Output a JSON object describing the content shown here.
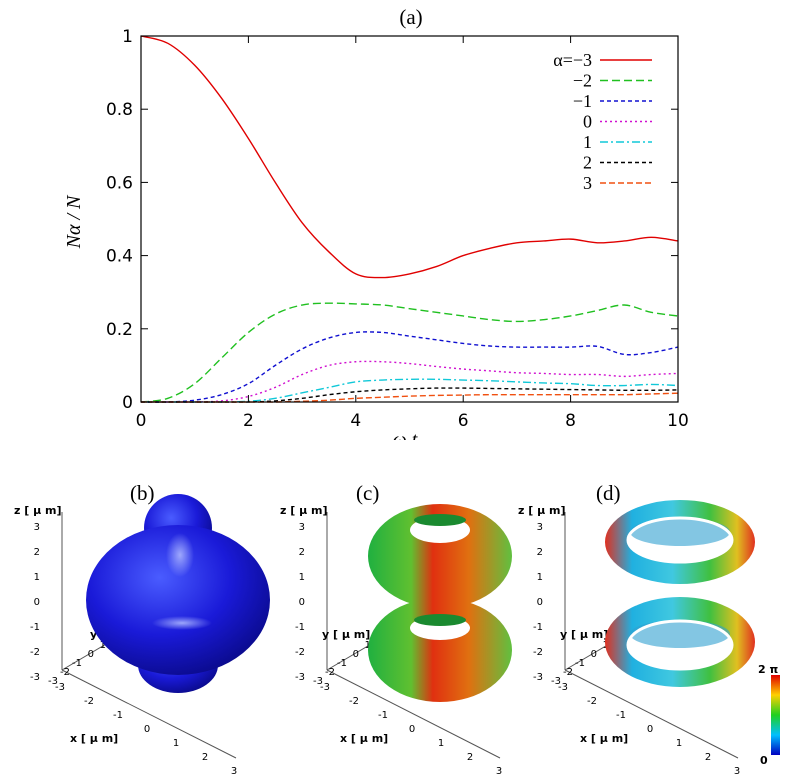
{
  "chart_data": {
    "type": "line",
    "panel_label": "(a)",
    "xlabel": "ω t",
    "ylabel": "Nα / N",
    "xlim": [
      0,
      10
    ],
    "ylim": [
      0,
      1
    ],
    "xticks": [
      "0",
      "2",
      "4",
      "6",
      "8",
      "10"
    ],
    "yticks": [
      "0",
      "0.2",
      "0.4",
      "0.6",
      "0.8",
      "1"
    ],
    "legend_position": "top-right",
    "series": [
      {
        "name": "α=−3",
        "color": "#e00000",
        "dash": "solid",
        "x": [
          0,
          0.5,
          1,
          1.5,
          2,
          2.5,
          3,
          3.5,
          4,
          4.5,
          5,
          5.5,
          6,
          6.5,
          7,
          7.5,
          8,
          8.5,
          9,
          9.5,
          10
        ],
        "y": [
          1.0,
          0.98,
          0.92,
          0.83,
          0.72,
          0.6,
          0.49,
          0.41,
          0.35,
          0.34,
          0.35,
          0.37,
          0.4,
          0.42,
          0.435,
          0.44,
          0.445,
          0.435,
          0.44,
          0.45,
          0.44
        ]
      },
      {
        "name": "−2",
        "color": "#20c020",
        "dash": "8,4",
        "x": [
          0,
          0.5,
          1,
          1.5,
          2,
          2.5,
          3,
          3.5,
          4,
          4.5,
          5,
          5.5,
          6,
          6.5,
          7,
          7.5,
          8,
          8.5,
          9,
          9.5,
          10
        ],
        "y": [
          0.0,
          0.01,
          0.05,
          0.12,
          0.19,
          0.24,
          0.265,
          0.27,
          0.268,
          0.265,
          0.255,
          0.245,
          0.235,
          0.225,
          0.22,
          0.225,
          0.235,
          0.25,
          0.265,
          0.245,
          0.235
        ]
      },
      {
        "name": "−1",
        "color": "#1010d0",
        "dash": "4,3",
        "x": [
          0,
          0.5,
          1,
          1.5,
          2,
          2.5,
          3,
          3.5,
          4,
          4.5,
          5,
          5.5,
          6,
          6.5,
          7,
          7.5,
          8,
          8.5,
          9,
          9.5,
          10
        ],
        "y": [
          0.0,
          0.0,
          0.005,
          0.02,
          0.05,
          0.1,
          0.145,
          0.175,
          0.19,
          0.19,
          0.18,
          0.17,
          0.16,
          0.153,
          0.15,
          0.15,
          0.15,
          0.152,
          0.13,
          0.135,
          0.15
        ]
      },
      {
        "name": "0",
        "color": "#d010d0",
        "dash": "2,3",
        "x": [
          0,
          0.5,
          1,
          1.5,
          2,
          2.5,
          3,
          3.5,
          4,
          4.5,
          5,
          5.5,
          6,
          6.5,
          7,
          7.5,
          8,
          8.5,
          9,
          9.5,
          10
        ],
        "y": [
          0.0,
          0.0,
          0.0,
          0.003,
          0.015,
          0.04,
          0.075,
          0.1,
          0.11,
          0.11,
          0.105,
          0.097,
          0.09,
          0.085,
          0.08,
          0.078,
          0.075,
          0.075,
          0.07,
          0.075,
          0.078
        ]
      },
      {
        "name": "1",
        "color": "#10c8d8",
        "dash": "8,3,2,3",
        "x": [
          0,
          0.5,
          1,
          1.5,
          2,
          2.5,
          3,
          3.5,
          4,
          4.5,
          5,
          5.5,
          6,
          6.5,
          7,
          7.5,
          8,
          8.5,
          9,
          9.5,
          10
        ],
        "y": [
          0.0,
          0.0,
          0.0,
          0.0,
          0.002,
          0.01,
          0.025,
          0.04,
          0.055,
          0.06,
          0.062,
          0.062,
          0.06,
          0.058,
          0.055,
          0.052,
          0.05,
          0.045,
          0.045,
          0.048,
          0.045
        ]
      },
      {
        "name": "2",
        "color": "#000000",
        "dash": "4,3",
        "x": [
          0,
          0.5,
          1,
          1.5,
          2,
          2.5,
          3,
          3.5,
          4,
          4.5,
          5,
          5.5,
          6,
          6.5,
          7,
          7.5,
          8,
          8.5,
          9,
          9.5,
          10
        ],
        "y": [
          0.0,
          0.0,
          0.0,
          0.0,
          0.0,
          0.003,
          0.01,
          0.02,
          0.028,
          0.033,
          0.036,
          0.038,
          0.038,
          0.037,
          0.036,
          0.035,
          0.034,
          0.033,
          0.032,
          0.032,
          0.033
        ]
      },
      {
        "name": "3",
        "color": "#f05010",
        "dash": "6,3",
        "x": [
          0,
          0.5,
          1,
          1.5,
          2,
          2.5,
          3,
          3.5,
          4,
          4.5,
          5,
          5.5,
          6,
          6.5,
          7,
          7.5,
          8,
          8.5,
          9,
          9.5,
          10
        ],
        "y": [
          0.0,
          0.0,
          0.0,
          0.0,
          0.0,
          0.0,
          0.002,
          0.005,
          0.01,
          0.013,
          0.016,
          0.018,
          0.019,
          0.02,
          0.02,
          0.02,
          0.02,
          0.02,
          0.02,
          0.022,
          0.024
        ]
      }
    ]
  },
  "panels": [
    {
      "label": "(b)",
      "zlabel": "z [ μ m]",
      "ylabel": "y [ μ m]",
      "xlabel": "x [ μ m]"
    },
    {
      "label": "(c)",
      "zlabel": "z [ μ m]",
      "ylabel": "y [ μ m]",
      "xlabel": "x [ μ m]"
    },
    {
      "label": "(d)",
      "zlabel": "z [ μ m]",
      "ylabel": "y [ μ m]",
      "xlabel": "x [ μ m]"
    }
  ],
  "axis3d": {
    "z_ticks": [
      "3",
      "2",
      "1",
      "0",
      "-1",
      "-2",
      "-3"
    ],
    "y_ticks": [
      "3",
      "2",
      "1",
      "0",
      "-1",
      "-2",
      "-3"
    ],
    "x_ticks": [
      "-3",
      "-2",
      "-1",
      "0",
      "1",
      "2",
      "3"
    ]
  },
  "colorbar": {
    "max_label": "2 π",
    "min_label": "0"
  },
  "colors": {
    "density_blue": "#1a1ad8"
  }
}
